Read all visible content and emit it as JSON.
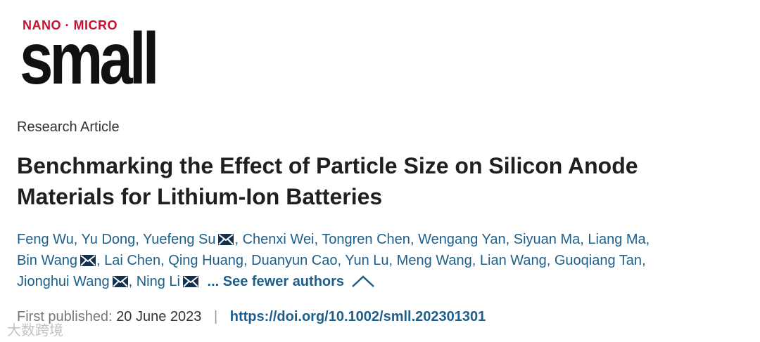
{
  "journal": {
    "logo_top": "NANO · MICRO",
    "logo_main": "small"
  },
  "article": {
    "type": "Research Article",
    "title": "Benchmarking the Effect of Particle Size on Silicon Anode Materials for Lithium-Ion Batteries",
    "author_separator": ",",
    "authors": [
      {
        "name": "Feng Wu",
        "corresponding": false
      },
      {
        "name": "Yu Dong",
        "corresponding": false
      },
      {
        "name": "Yuefeng Su",
        "corresponding": true
      },
      {
        "name": "Chenxi Wei",
        "corresponding": false
      },
      {
        "name": "Tongren Chen",
        "corresponding": false
      },
      {
        "name": "Wengang Yan",
        "corresponding": false
      },
      {
        "name": "Siyuan Ma",
        "corresponding": false
      },
      {
        "name": "Liang Ma",
        "corresponding": false
      },
      {
        "name": "Bin Wang",
        "corresponding": true
      },
      {
        "name": "Lai Chen",
        "corresponding": false
      },
      {
        "name": "Qing Huang",
        "corresponding": false
      },
      {
        "name": "Duanyun Cao",
        "corresponding": false
      },
      {
        "name": "Yun Lu",
        "corresponding": false
      },
      {
        "name": "Meng Wang",
        "corresponding": false
      },
      {
        "name": "Lian Wang",
        "corresponding": false
      },
      {
        "name": "Guoqiang Tan",
        "corresponding": false
      },
      {
        "name": "Jionghui Wang",
        "corresponding": true
      },
      {
        "name": "Ning Li",
        "corresponding": true
      }
    ],
    "authors_toggle": "... See fewer authors",
    "published_label": "First published:",
    "published_date": "20 June 2023",
    "divider": "|",
    "doi": "https://doi.org/10.1002/smll.202301301"
  },
  "watermark": "大数跨境"
}
